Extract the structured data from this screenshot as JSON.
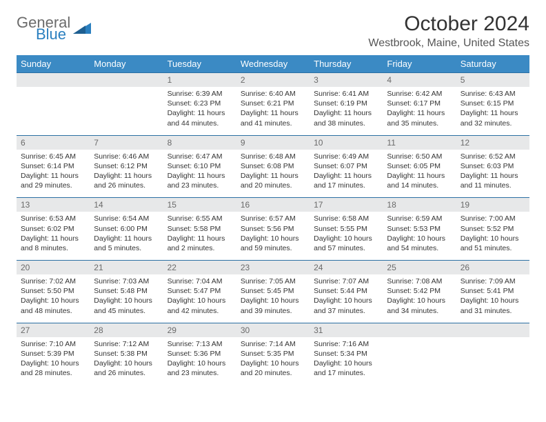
{
  "logo": {
    "line1": "General",
    "line2": "Blue"
  },
  "title": "October 2024",
  "location": "Westbrook, Maine, United States",
  "colors": {
    "header_bg": "#3b8ac4",
    "header_border": "#2a6fa3",
    "daynum_bg": "#e7e8e9",
    "daynum_text": "#6a6a6a",
    "body_text": "#333333",
    "logo_gray": "#6b6b6b",
    "logo_blue": "#2a7fbf"
  },
  "typography": {
    "title_fontsize": 30,
    "location_fontsize": 16,
    "dayhead_fontsize": 13,
    "daynum_fontsize": 12,
    "body_fontsize": 10.5
  },
  "layout": {
    "columns": 7,
    "rows": 5,
    "cell_min_height": 78
  },
  "dayNames": [
    "Sunday",
    "Monday",
    "Tuesday",
    "Wednesday",
    "Thursday",
    "Friday",
    "Saturday"
  ],
  "weeks": [
    [
      {
        "num": "",
        "sunrise": "",
        "sunset": "",
        "daylight": ""
      },
      {
        "num": "",
        "sunrise": "",
        "sunset": "",
        "daylight": ""
      },
      {
        "num": "1",
        "sunrise": "Sunrise: 6:39 AM",
        "sunset": "Sunset: 6:23 PM",
        "daylight": "Daylight: 11 hours and 44 minutes."
      },
      {
        "num": "2",
        "sunrise": "Sunrise: 6:40 AM",
        "sunset": "Sunset: 6:21 PM",
        "daylight": "Daylight: 11 hours and 41 minutes."
      },
      {
        "num": "3",
        "sunrise": "Sunrise: 6:41 AM",
        "sunset": "Sunset: 6:19 PM",
        "daylight": "Daylight: 11 hours and 38 minutes."
      },
      {
        "num": "4",
        "sunrise": "Sunrise: 6:42 AM",
        "sunset": "Sunset: 6:17 PM",
        "daylight": "Daylight: 11 hours and 35 minutes."
      },
      {
        "num": "5",
        "sunrise": "Sunrise: 6:43 AM",
        "sunset": "Sunset: 6:15 PM",
        "daylight": "Daylight: 11 hours and 32 minutes."
      }
    ],
    [
      {
        "num": "6",
        "sunrise": "Sunrise: 6:45 AM",
        "sunset": "Sunset: 6:14 PM",
        "daylight": "Daylight: 11 hours and 29 minutes."
      },
      {
        "num": "7",
        "sunrise": "Sunrise: 6:46 AM",
        "sunset": "Sunset: 6:12 PM",
        "daylight": "Daylight: 11 hours and 26 minutes."
      },
      {
        "num": "8",
        "sunrise": "Sunrise: 6:47 AM",
        "sunset": "Sunset: 6:10 PM",
        "daylight": "Daylight: 11 hours and 23 minutes."
      },
      {
        "num": "9",
        "sunrise": "Sunrise: 6:48 AM",
        "sunset": "Sunset: 6:08 PM",
        "daylight": "Daylight: 11 hours and 20 minutes."
      },
      {
        "num": "10",
        "sunrise": "Sunrise: 6:49 AM",
        "sunset": "Sunset: 6:07 PM",
        "daylight": "Daylight: 11 hours and 17 minutes."
      },
      {
        "num": "11",
        "sunrise": "Sunrise: 6:50 AM",
        "sunset": "Sunset: 6:05 PM",
        "daylight": "Daylight: 11 hours and 14 minutes."
      },
      {
        "num": "12",
        "sunrise": "Sunrise: 6:52 AM",
        "sunset": "Sunset: 6:03 PM",
        "daylight": "Daylight: 11 hours and 11 minutes."
      }
    ],
    [
      {
        "num": "13",
        "sunrise": "Sunrise: 6:53 AM",
        "sunset": "Sunset: 6:02 PM",
        "daylight": "Daylight: 11 hours and 8 minutes."
      },
      {
        "num": "14",
        "sunrise": "Sunrise: 6:54 AM",
        "sunset": "Sunset: 6:00 PM",
        "daylight": "Daylight: 11 hours and 5 minutes."
      },
      {
        "num": "15",
        "sunrise": "Sunrise: 6:55 AM",
        "sunset": "Sunset: 5:58 PM",
        "daylight": "Daylight: 11 hours and 2 minutes."
      },
      {
        "num": "16",
        "sunrise": "Sunrise: 6:57 AM",
        "sunset": "Sunset: 5:56 PM",
        "daylight": "Daylight: 10 hours and 59 minutes."
      },
      {
        "num": "17",
        "sunrise": "Sunrise: 6:58 AM",
        "sunset": "Sunset: 5:55 PM",
        "daylight": "Daylight: 10 hours and 57 minutes."
      },
      {
        "num": "18",
        "sunrise": "Sunrise: 6:59 AM",
        "sunset": "Sunset: 5:53 PM",
        "daylight": "Daylight: 10 hours and 54 minutes."
      },
      {
        "num": "19",
        "sunrise": "Sunrise: 7:00 AM",
        "sunset": "Sunset: 5:52 PM",
        "daylight": "Daylight: 10 hours and 51 minutes."
      }
    ],
    [
      {
        "num": "20",
        "sunrise": "Sunrise: 7:02 AM",
        "sunset": "Sunset: 5:50 PM",
        "daylight": "Daylight: 10 hours and 48 minutes."
      },
      {
        "num": "21",
        "sunrise": "Sunrise: 7:03 AM",
        "sunset": "Sunset: 5:48 PM",
        "daylight": "Daylight: 10 hours and 45 minutes."
      },
      {
        "num": "22",
        "sunrise": "Sunrise: 7:04 AM",
        "sunset": "Sunset: 5:47 PM",
        "daylight": "Daylight: 10 hours and 42 minutes."
      },
      {
        "num": "23",
        "sunrise": "Sunrise: 7:05 AM",
        "sunset": "Sunset: 5:45 PM",
        "daylight": "Daylight: 10 hours and 39 minutes."
      },
      {
        "num": "24",
        "sunrise": "Sunrise: 7:07 AM",
        "sunset": "Sunset: 5:44 PM",
        "daylight": "Daylight: 10 hours and 37 minutes."
      },
      {
        "num": "25",
        "sunrise": "Sunrise: 7:08 AM",
        "sunset": "Sunset: 5:42 PM",
        "daylight": "Daylight: 10 hours and 34 minutes."
      },
      {
        "num": "26",
        "sunrise": "Sunrise: 7:09 AM",
        "sunset": "Sunset: 5:41 PM",
        "daylight": "Daylight: 10 hours and 31 minutes."
      }
    ],
    [
      {
        "num": "27",
        "sunrise": "Sunrise: 7:10 AM",
        "sunset": "Sunset: 5:39 PM",
        "daylight": "Daylight: 10 hours and 28 minutes."
      },
      {
        "num": "28",
        "sunrise": "Sunrise: 7:12 AM",
        "sunset": "Sunset: 5:38 PM",
        "daylight": "Daylight: 10 hours and 26 minutes."
      },
      {
        "num": "29",
        "sunrise": "Sunrise: 7:13 AM",
        "sunset": "Sunset: 5:36 PM",
        "daylight": "Daylight: 10 hours and 23 minutes."
      },
      {
        "num": "30",
        "sunrise": "Sunrise: 7:14 AM",
        "sunset": "Sunset: 5:35 PM",
        "daylight": "Daylight: 10 hours and 20 minutes."
      },
      {
        "num": "31",
        "sunrise": "Sunrise: 7:16 AM",
        "sunset": "Sunset: 5:34 PM",
        "daylight": "Daylight: 10 hours and 17 minutes."
      },
      {
        "num": "",
        "sunrise": "",
        "sunset": "",
        "daylight": ""
      },
      {
        "num": "",
        "sunrise": "",
        "sunset": "",
        "daylight": ""
      }
    ]
  ]
}
